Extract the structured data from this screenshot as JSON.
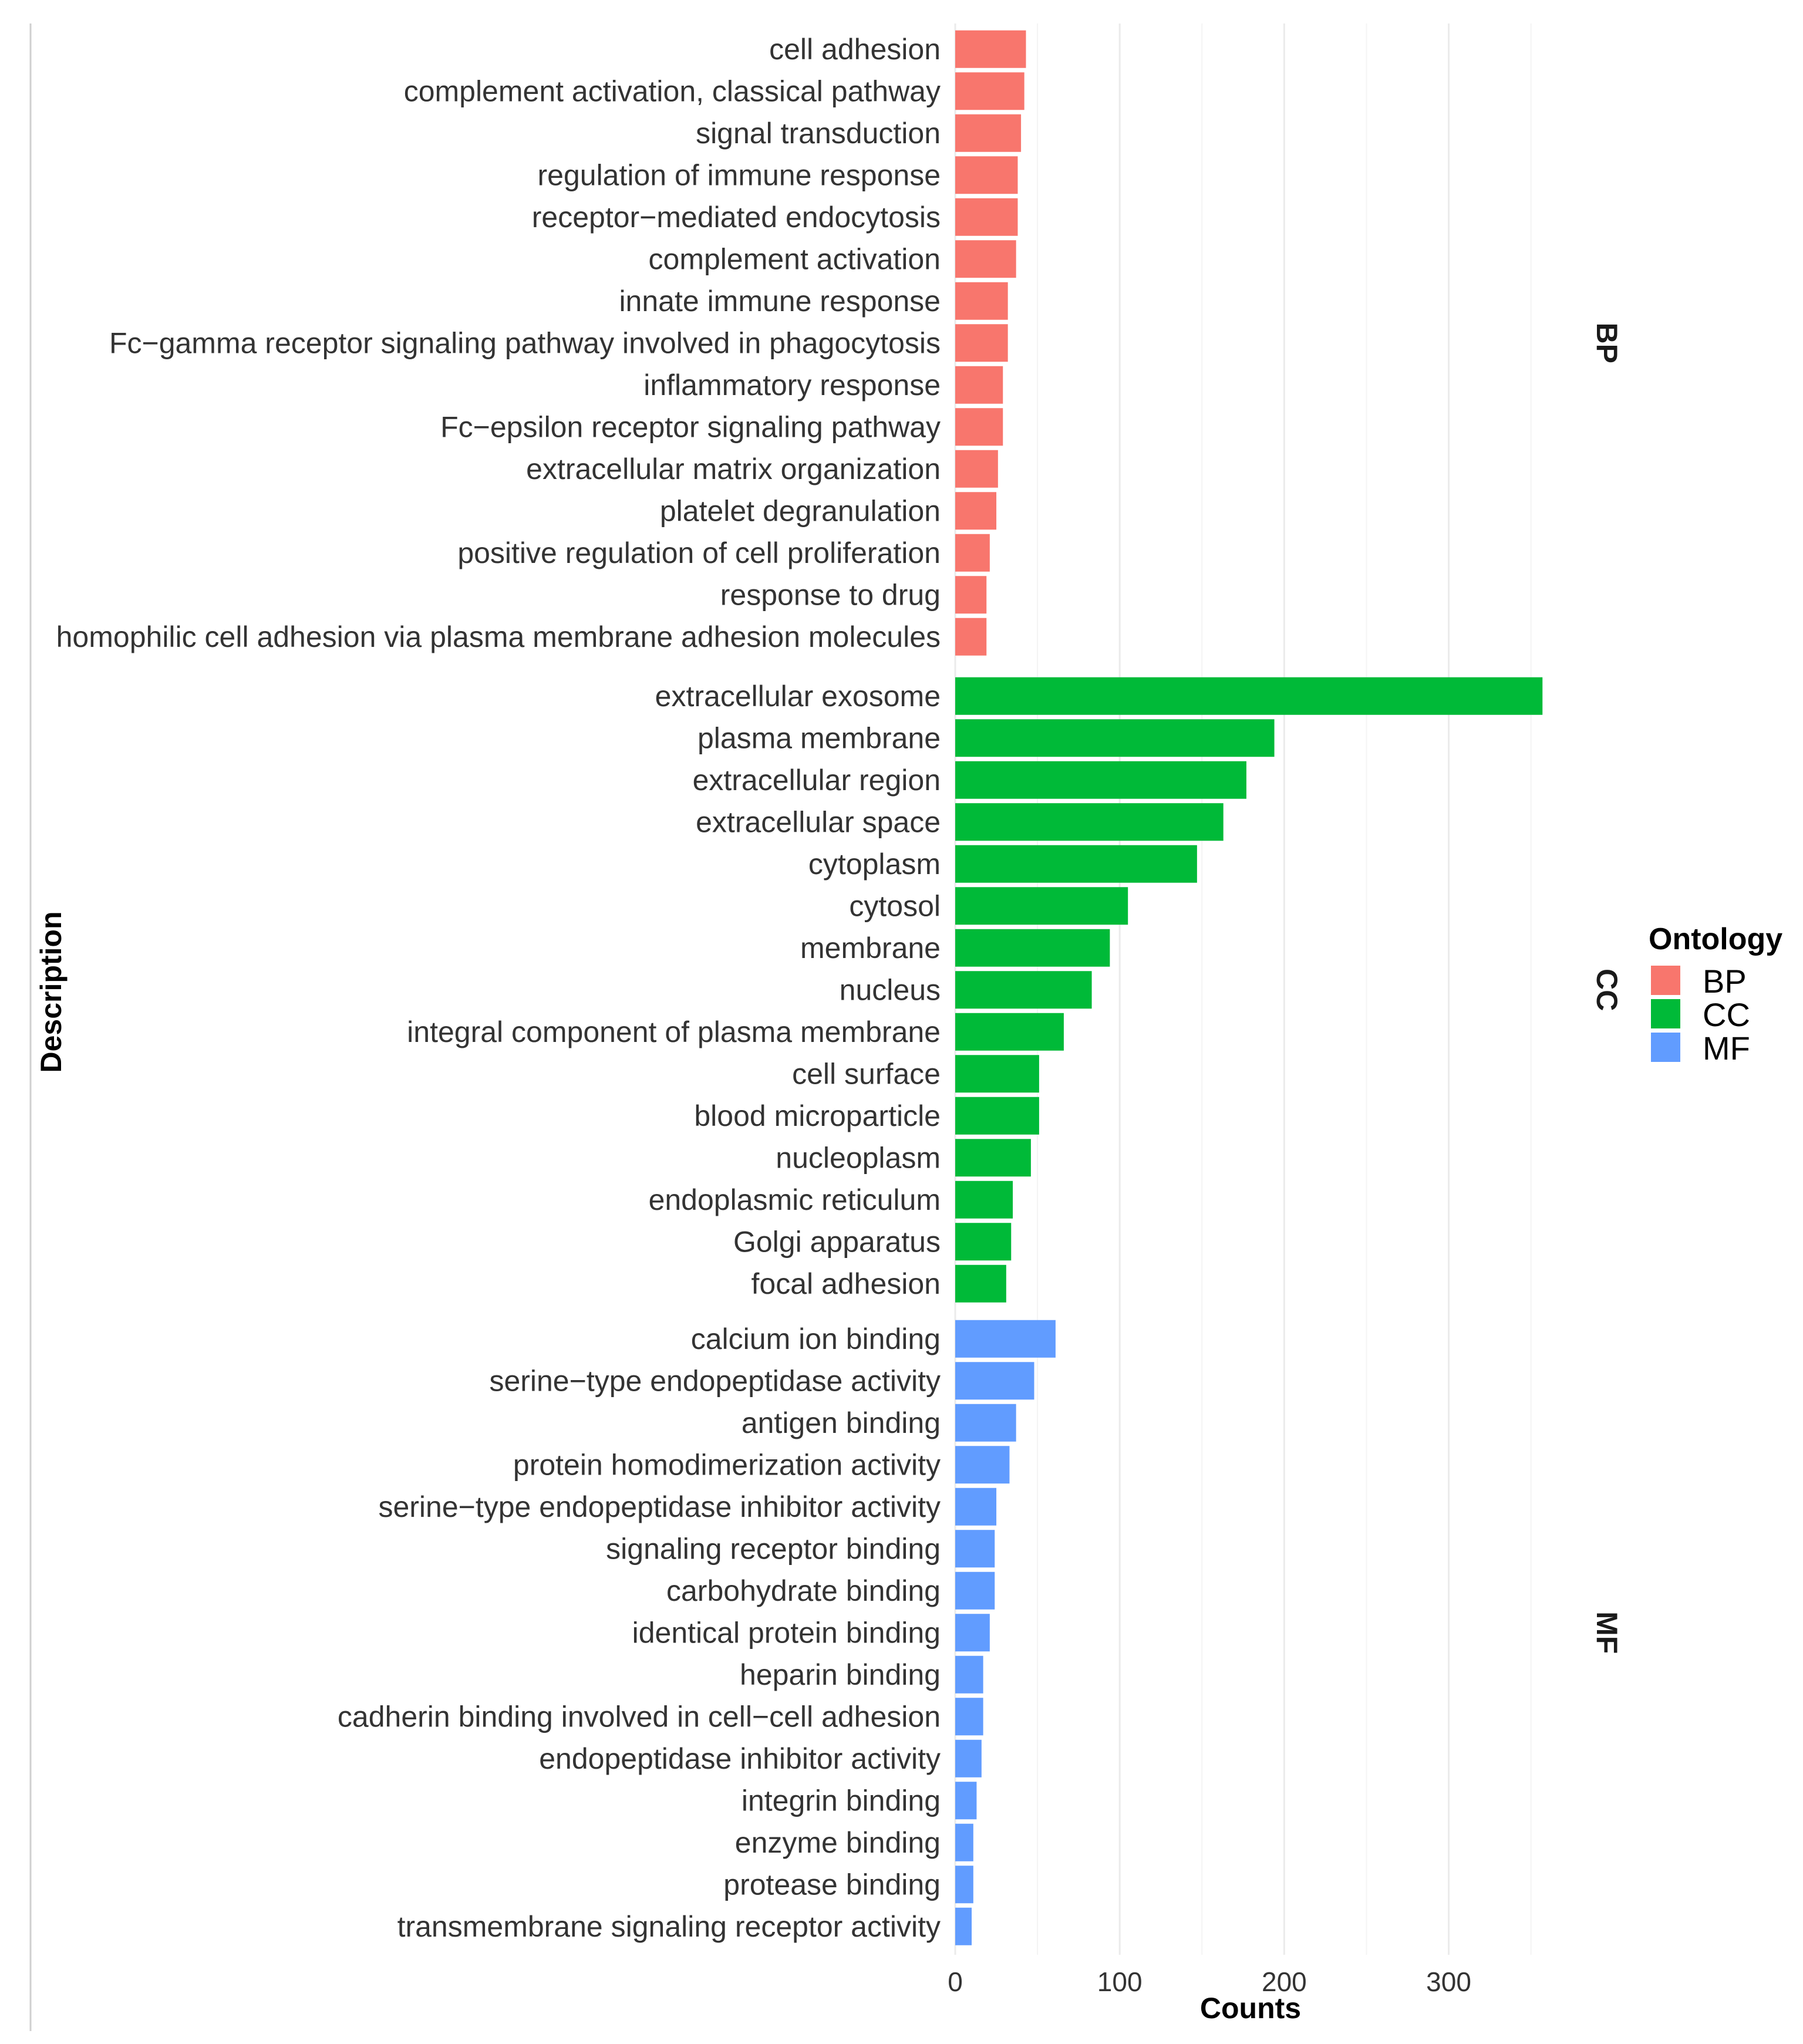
{
  "chart_data": {
    "type": "bar",
    "orientation": "horizontal",
    "xlabel": "Counts",
    "ylabel": "Description",
    "xlim": [
      0,
      360
    ],
    "xticks": [
      0,
      100,
      200,
      300
    ],
    "grid": true,
    "legend": {
      "title": "Ontology",
      "placement": "right",
      "entries": [
        "BP",
        "CC",
        "MF"
      ]
    },
    "colors": {
      "BP": "#F8766D",
      "CC": "#00BA38",
      "MF": "#619CFF"
    },
    "panels": [
      {
        "name": "BP",
        "categories": [
          "cell adhesion",
          "complement activation, classical pathway",
          "signal transduction",
          "regulation of immune response",
          "receptor−mediated endocytosis",
          "complement activation",
          "innate immune response",
          "Fc−gamma receptor signaling pathway involved in phagocytosis",
          "inflammatory response",
          "Fc−epsilon receptor signaling pathway",
          "extracellular matrix organization",
          "platelet degranulation",
          "positive regulation of cell proliferation",
          "response to drug",
          "homophilic cell adhesion via plasma membrane adhesion molecules"
        ],
        "values": [
          43,
          42,
          40,
          38,
          38,
          37,
          32,
          32,
          29,
          29,
          26,
          25,
          21,
          19,
          19
        ]
      },
      {
        "name": "CC",
        "categories": [
          "extracellular exosome",
          "plasma membrane",
          "extracellular region",
          "extracellular space",
          "cytoplasm",
          "cytosol",
          "membrane",
          "nucleus",
          "integral component of plasma membrane",
          "cell surface",
          "blood microparticle",
          "nucleoplasm",
          "endoplasmic reticulum",
          "Golgi apparatus",
          "focal adhesion"
        ],
        "values": [
          357,
          194,
          177,
          163,
          147,
          105,
          94,
          83,
          66,
          51,
          51,
          46,
          35,
          34,
          31
        ]
      },
      {
        "name": "MF",
        "categories": [
          "calcium ion binding",
          "serine−type endopeptidase activity",
          "antigen binding",
          "protein homodimerization activity",
          "serine−type endopeptidase inhibitor activity",
          "signaling receptor binding",
          "carbohydrate binding",
          "identical protein binding",
          "heparin binding",
          "cadherin binding involved in cell−cell adhesion",
          "endopeptidase inhibitor activity",
          "integrin binding",
          "enzyme binding",
          "protease binding",
          "transmembrane signaling receptor activity"
        ],
        "values": [
          61,
          48,
          37,
          33,
          25,
          24,
          24,
          21,
          17,
          17,
          16,
          13,
          11,
          11,
          10
        ]
      }
    ]
  }
}
